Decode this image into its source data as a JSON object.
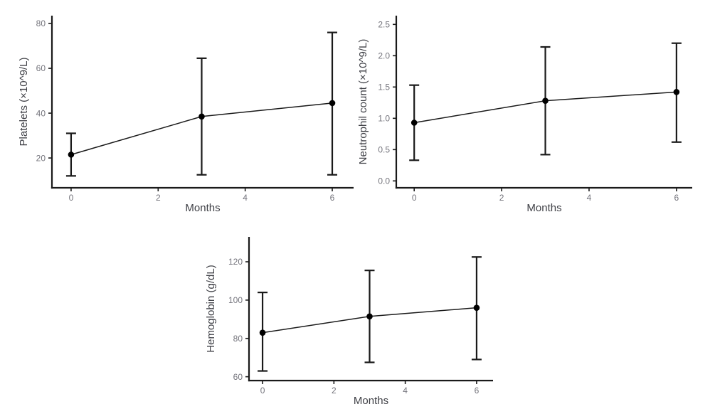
{
  "figure": {
    "background": "#ffffff",
    "description": "Three-panel figure of mean values with error bars over months"
  },
  "style": {
    "axis_color": "#1a1a1a",
    "series_color": "#1a1a1a",
    "point_color": "#000000",
    "tick_label_color": "#74747c",
    "axis_title_color": "#3f4046"
  },
  "chart_data": [
    {
      "id": "platelets",
      "type": "line",
      "title": "",
      "xlabel": "Months",
      "ylabel": "Platelets (×10^9/L)",
      "x": [
        0,
        3,
        6
      ],
      "values": [
        21.5,
        38.5,
        44.5
      ],
      "error_low": [
        12,
        12.5,
        12.5
      ],
      "error_high": [
        31,
        64.5,
        76
      ],
      "xticks": [
        0,
        2,
        4,
        6
      ],
      "xtick_labels": [
        "0",
        "2",
        "4",
        "6"
      ],
      "yticks": [
        20,
        40,
        60,
        80
      ],
      "ytick_labels": [
        "20",
        "40",
        "60",
        "80"
      ],
      "xlim": [
        -0.44,
        6.49
      ],
      "ylim": [
        6.7,
        83.5
      ],
      "grid": false,
      "legend": "none",
      "marker": "circle",
      "error_bars": true
    },
    {
      "id": "neutrophil-count",
      "type": "line",
      "title": "",
      "xlabel": "Months",
      "ylabel": "Neutrophil count (×10^9/L)",
      "x": [
        0,
        3,
        6
      ],
      "values": [
        0.93,
        1.28,
        1.42
      ],
      "error_low": [
        0.33,
        0.42,
        0.62
      ],
      "error_high": [
        1.53,
        2.14,
        2.2
      ],
      "xticks": [
        0,
        2,
        4,
        6
      ],
      "xtick_labels": [
        "0",
        "2",
        "4",
        "6"
      ],
      "yticks": [
        0,
        0.5,
        1,
        1.5,
        2,
        2.5
      ],
      "ytick_labels": [
        "0.0",
        "0.5",
        "1.0",
        "1.5",
        "2.0",
        "2.5"
      ],
      "xlim": [
        -0.41,
        6.36
      ],
      "ylim": [
        -0.11,
        2.64
      ],
      "grid": false,
      "legend": "none",
      "marker": "circle",
      "error_bars": true
    },
    {
      "id": "hemoglobin",
      "type": "line",
      "title": "",
      "xlabel": "Months",
      "ylabel": "Hemoglobin (g/dL)",
      "x": [
        0,
        3,
        6
      ],
      "values": [
        83,
        91.5,
        96
      ],
      "error_low": [
        63,
        67.5,
        69
      ],
      "error_high": [
        104,
        115.5,
        122.5
      ],
      "xticks": [
        0,
        2,
        4,
        6
      ],
      "xtick_labels": [
        "0",
        "2",
        "4",
        "6"
      ],
      "yticks": [
        60,
        80,
        100,
        120
      ],
      "ytick_labels": [
        "60",
        "80",
        "100",
        "120"
      ],
      "xlim": [
        -0.38,
        6.46
      ],
      "ylim": [
        58,
        133
      ],
      "grid": false,
      "legend": "none",
      "marker": "circle",
      "error_bars": true
    }
  ]
}
